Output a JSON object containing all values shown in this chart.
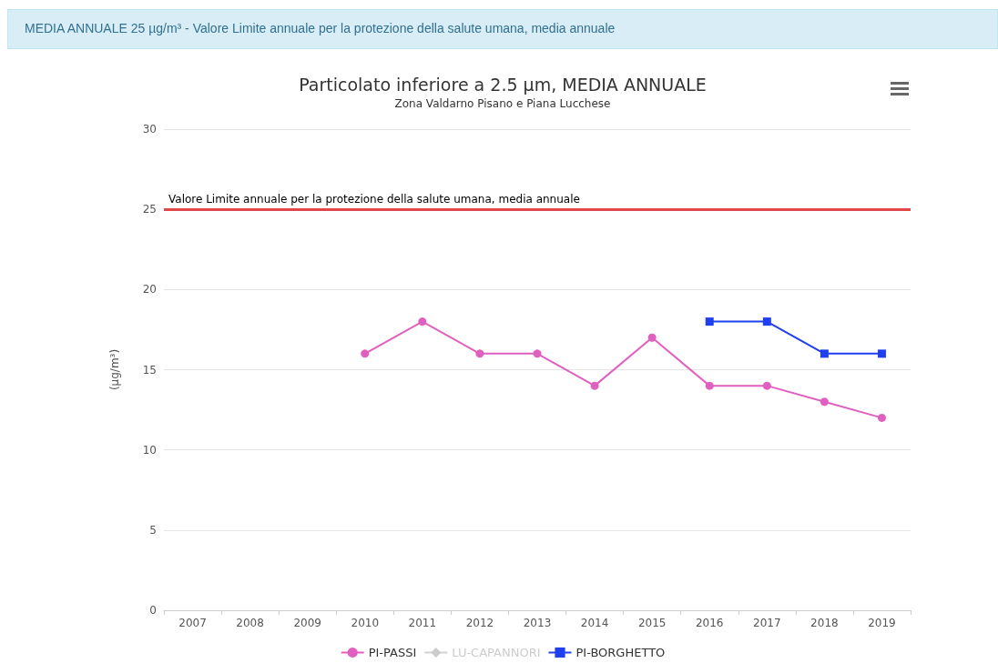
{
  "chart_data": {
    "type": "line",
    "title": "Particolato inferiore a 2.5 µm, MEDIA ANNUALE",
    "subtitle": "Zona Valdarno Pisano e Piana Lucchese",
    "ylabel": "(µg/m³)",
    "annotations": [
      "MEDIA ANNUALE 25 µg/m³ - Valore Limite annuale per la protezione della salute umana, media annuale"
    ],
    "categories": [
      "2007",
      "2008",
      "2009",
      "2010",
      "2011",
      "2012",
      "2013",
      "2014",
      "2015",
      "2016",
      "2017",
      "2018",
      "2019"
    ],
    "series": [
      {
        "name": "PI-PASSI",
        "color": "#e060c0",
        "marker": "circle",
        "values": [
          null,
          null,
          null,
          16,
          18,
          16,
          16,
          14,
          17,
          14,
          14,
          13,
          12
        ]
      },
      {
        "name": "LU-CAPANNORI",
        "color": "#cccccc",
        "marker": "diamond",
        "values": [
          null,
          null,
          null,
          null,
          null,
          null,
          null,
          null,
          null,
          null,
          null,
          null,
          null
        ]
      },
      {
        "name": "PI-BORGHETTO",
        "color": "#2040f0",
        "marker": "square",
        "values": [
          null,
          null,
          null,
          null,
          null,
          null,
          null,
          null,
          null,
          18,
          18,
          16,
          16
        ]
      }
    ],
    "ylim": [
      0,
      30
    ],
    "yticks": [
      0,
      5,
      10,
      15,
      20,
      25,
      30
    ],
    "ref_lines": [
      {
        "axis": "y",
        "value": 25,
        "label": "Valore Limite annuale per la protezione della salute umana, media annuale",
        "color": "#e04848"
      }
    ],
    "grid": "y",
    "legend": "bottom",
    "line_style": "solid"
  }
}
